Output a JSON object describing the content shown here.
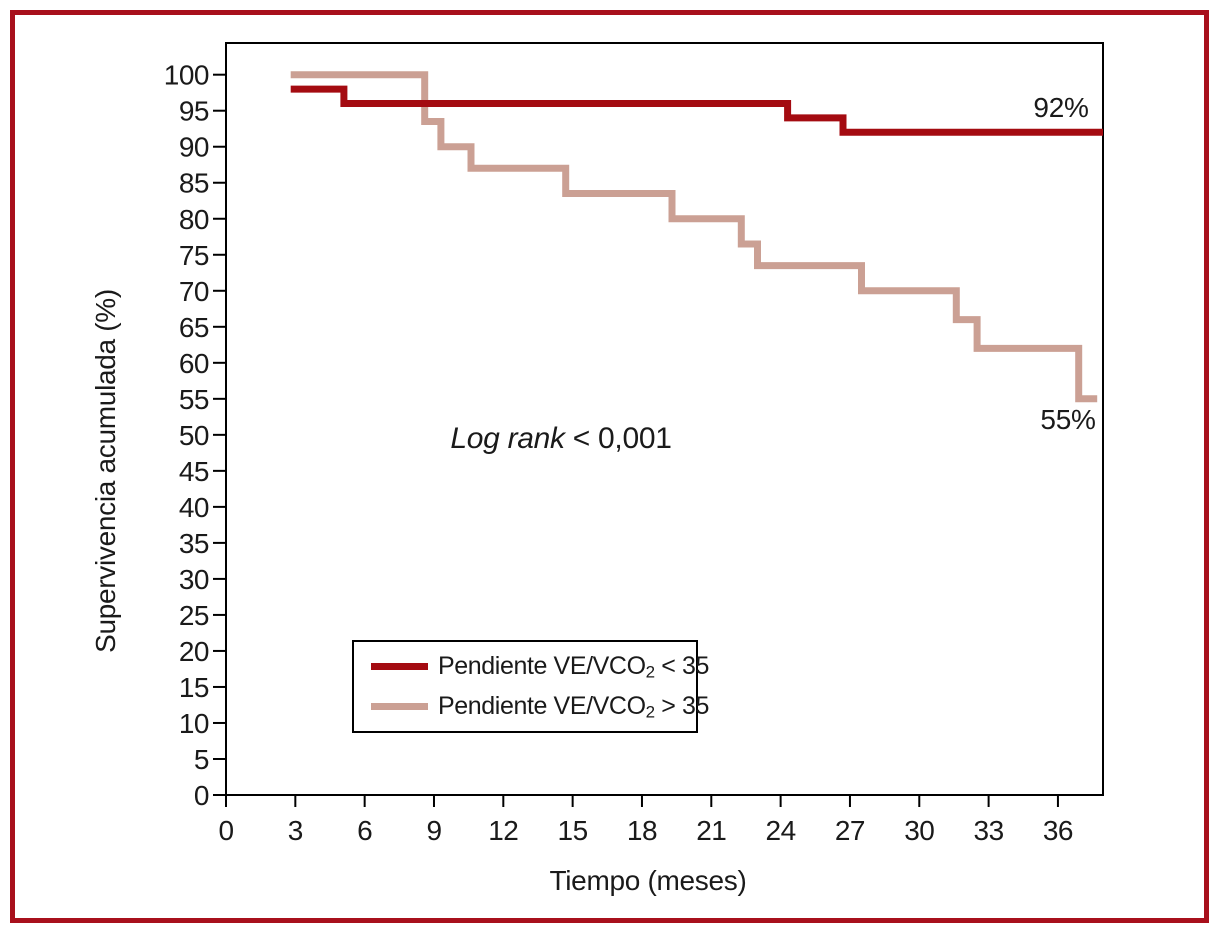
{
  "figure": {
    "border_color": "#a8101c",
    "background": "#ffffff",
    "axis_color": "#000000",
    "text_color": "#1a1a1a"
  },
  "chart_data": {
    "type": "line",
    "subtype": "kaplan-meier-step",
    "title": "",
    "xlabel": "Tiempo (meses)",
    "ylabel": "Supervivencia acumulada (%)",
    "xlim": [
      0,
      37.95
    ],
    "ylim": [
      0,
      104.4
    ],
    "xticks": [
      0,
      3,
      6,
      9,
      12,
      15,
      18,
      21,
      24,
      27,
      30,
      33,
      36
    ],
    "yticks": [
      0,
      5,
      10,
      15,
      20,
      25,
      30,
      35,
      40,
      45,
      50,
      55,
      60,
      65,
      70,
      75,
      80,
      85,
      90,
      95,
      100
    ],
    "grid": false,
    "legend_position": "lower-left-inside",
    "series": [
      {
        "name": "Pendiente VE/VCO2 < 35",
        "name_parts": [
          "Pendiente VE/VCO",
          "2",
          " < 35"
        ],
        "color": "#a40b11",
        "end_label": "92%",
        "end_x": 37.95,
        "steps": [
          [
            2.8,
            98
          ],
          [
            5.1,
            96
          ],
          [
            24.3,
            94
          ],
          [
            26.7,
            92
          ]
        ]
      },
      {
        "name": "Pendiente VE/VCO2 > 35",
        "name_parts": [
          "Pendiente VE/VCO",
          "2",
          " > 35"
        ],
        "color": "#cba094",
        "end_label": "55%",
        "end_x": 37.7,
        "steps": [
          [
            2.8,
            100
          ],
          [
            8.6,
            93.5
          ],
          [
            9.3,
            90
          ],
          [
            10.6,
            87
          ],
          [
            14.7,
            83.5
          ],
          [
            19.3,
            80
          ],
          [
            22.3,
            76.5
          ],
          [
            23.0,
            73.5
          ],
          [
            27.5,
            70
          ],
          [
            31.6,
            66
          ],
          [
            32.5,
            62
          ],
          [
            36.9,
            55
          ]
        ]
      }
    ],
    "annotations": [
      {
        "italic": "Log rank",
        "regular": " < 0,001"
      }
    ]
  }
}
